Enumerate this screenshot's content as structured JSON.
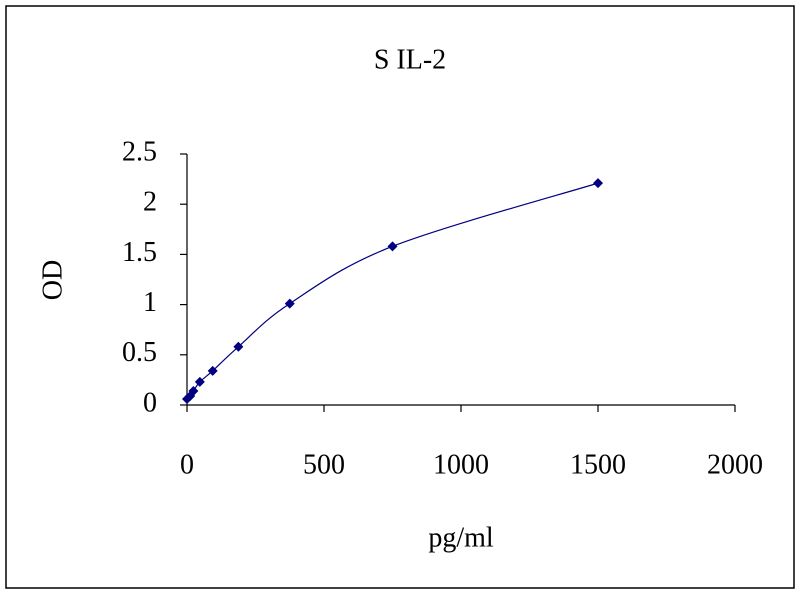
{
  "chart_data": {
    "type": "scatter",
    "title": "S IL-2",
    "x_label": "pg/ml",
    "y_label": "OD",
    "series": [
      {
        "name": "S IL-2",
        "color": "#000080",
        "x": [
          0,
          11.7,
          23.4,
          46.9,
          93.75,
          187.5,
          375,
          750,
          1500
        ],
        "values": [
          0.06,
          0.09,
          0.14,
          0.23,
          0.34,
          0.58,
          1.01,
          1.58,
          2.21
        ]
      }
    ],
    "xlim": [
      0,
      2000
    ],
    "xticks": [
      0,
      500,
      1000,
      1500,
      2000
    ],
    "ylim": [
      0,
      2.5
    ],
    "yticks": [
      0,
      0.5,
      1,
      1.5,
      2,
      2.5
    ],
    "smooth_line": true
  }
}
